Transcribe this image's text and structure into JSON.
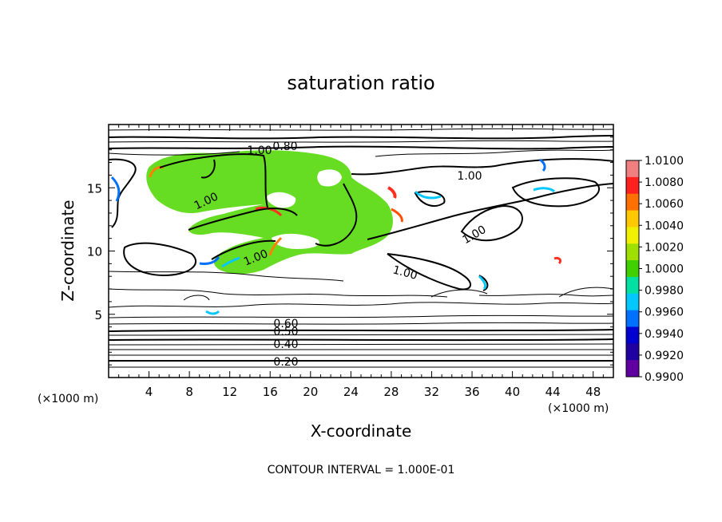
{
  "chart_data": {
    "type": "heatmap",
    "title": "saturation ratio",
    "xlabel": "X-coordinate",
    "ylabel": "Z-coordinate",
    "x_unit": "(×1000 m)",
    "y_unit": "(×1000 m)",
    "xlim": [
      0,
      50
    ],
    "ylim": [
      0,
      20
    ],
    "x_ticks": [
      "4",
      "8",
      "12",
      "16",
      "20",
      "24",
      "28",
      "32",
      "36",
      "40",
      "44",
      "48"
    ],
    "y_ticks": [
      "5",
      "10",
      "15"
    ],
    "contour_interval_text": "CONTOUR INTERVAL = 1.000E-01",
    "contour_labels": [
      "0.80",
      "1.00",
      "1.00",
      "1.00",
      "1.00",
      "1.00",
      "1.00",
      "0.60",
      "0.50",
      "0.40",
      "0.20"
    ],
    "colorbar": {
      "ticks": [
        "1.0100",
        "1.0080",
        "1.0060",
        "1.0040",
        "1.0020",
        "1.0000",
        "0.9980",
        "0.9960",
        "0.9940",
        "0.9920",
        "0.9900"
      ],
      "colors": [
        "#f08080",
        "#ff2020",
        "#ff7000",
        "#ffc800",
        "#f0f000",
        "#a0e000",
        "#40d000",
        "#00e0a0",
        "#00c8ff",
        "#0070ff",
        "#0000d0",
        "#2000a0",
        "#6000a0"
      ]
    },
    "legend": "right",
    "grid": false
  }
}
